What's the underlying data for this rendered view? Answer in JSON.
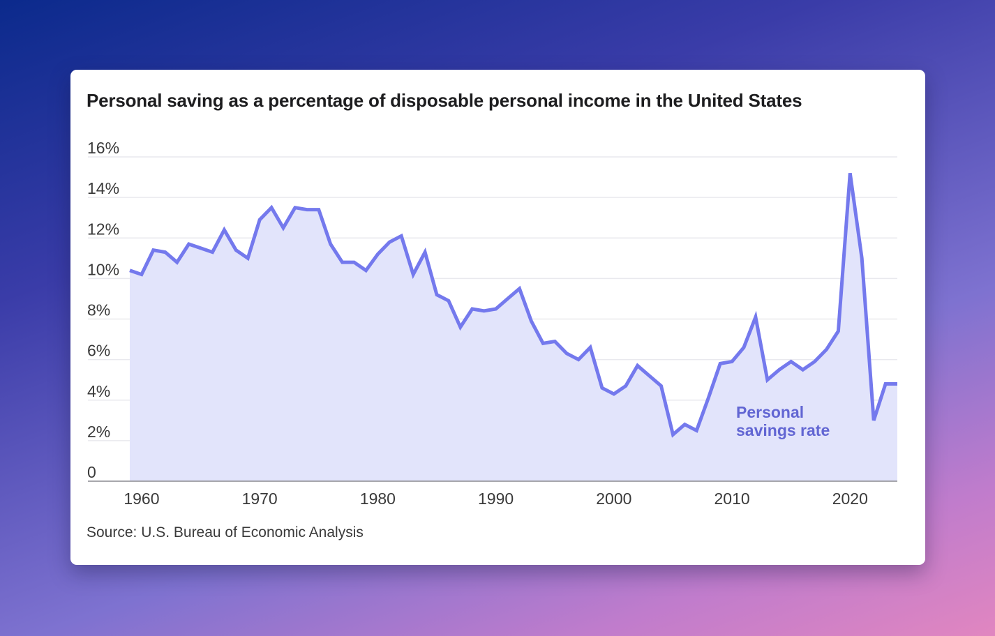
{
  "chart_data": {
    "type": "area",
    "title": "Personal saving as a percentage of disposable personal income in the United States",
    "source": "Source: U.S. Bureau of Economic Analysis",
    "xlabel": "",
    "ylabel": "",
    "xlim": [
      1959,
      2024
    ],
    "ylim": [
      0,
      16
    ],
    "x_ticks": [
      1960,
      1970,
      1980,
      1990,
      2000,
      2010,
      2020
    ],
    "y_ticks": [
      {
        "value": 0,
        "label": "0"
      },
      {
        "value": 2,
        "label": "2%"
      },
      {
        "value": 4,
        "label": "4%"
      },
      {
        "value": 6,
        "label": "6%"
      },
      {
        "value": 8,
        "label": "8%"
      },
      {
        "value": 10,
        "label": "10%"
      },
      {
        "value": 12,
        "label": "12%"
      },
      {
        "value": 14,
        "label": "14%"
      },
      {
        "value": 16,
        "label": "16%"
      }
    ],
    "grid": true,
    "colors": {
      "line": "#7479ed",
      "fill": "#e2e4fb",
      "grid": "#e9e9ee",
      "label": "#6266d3"
    },
    "series": [
      {
        "name": "Personal savings rate",
        "x": [
          1959,
          1960,
          1961,
          1962,
          1963,
          1964,
          1965,
          1966,
          1967,
          1968,
          1969,
          1970,
          1971,
          1972,
          1973,
          1974,
          1975,
          1976,
          1977,
          1978,
          1979,
          1980,
          1981,
          1982,
          1983,
          1984,
          1985,
          1986,
          1987,
          1988,
          1989,
          1990,
          1991,
          1992,
          1993,
          1994,
          1995,
          1996,
          1997,
          1998,
          1999,
          2000,
          2001,
          2002,
          2003,
          2004,
          2005,
          2006,
          2007,
          2008,
          2009,
          2010,
          2011,
          2012,
          2013,
          2014,
          2015,
          2016,
          2017,
          2018,
          2019,
          2020,
          2021,
          2022,
          2023,
          2024
        ],
        "values": [
          10.4,
          10.2,
          11.4,
          11.3,
          10.8,
          11.7,
          11.5,
          11.3,
          12.4,
          11.4,
          11.0,
          12.9,
          13.5,
          12.5,
          13.5,
          13.4,
          13.4,
          11.7,
          10.8,
          10.8,
          10.4,
          11.2,
          11.8,
          12.1,
          10.2,
          11.3,
          9.2,
          8.9,
          7.6,
          8.5,
          8.4,
          8.5,
          9.0,
          9.5,
          7.9,
          6.8,
          6.9,
          6.3,
          6.0,
          6.6,
          4.6,
          4.3,
          4.7,
          5.7,
          5.2,
          4.7,
          2.3,
          2.8,
          2.5,
          4.1,
          5.8,
          5.9,
          6.6,
          8.1,
          5.0,
          5.5,
          5.9,
          5.5,
          5.9,
          6.5,
          7.4,
          15.2,
          11.0,
          3.0,
          4.8,
          4.8
        ]
      }
    ],
    "series_label_lines": [
      "Personal",
      "savings rate"
    ]
  }
}
